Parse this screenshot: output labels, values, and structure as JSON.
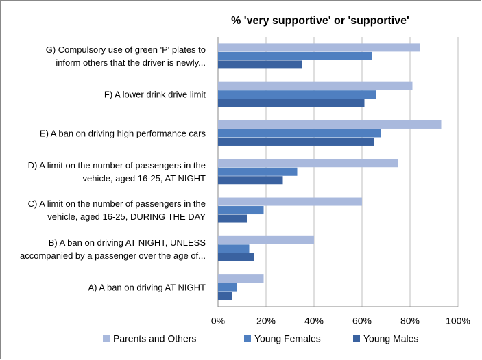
{
  "chart_data": {
    "type": "hbar",
    "title": "% 'very supportive' or 'supportive'",
    "categories": [
      "G) Compulsory use of green 'P' plates to\ninform others that the driver is newly...",
      "F) A lower drink drive limit",
      "E) A ban on driving high performance cars",
      "D) A limit on the number of passengers in the\nvehicle, aged 16-25, AT NIGHT",
      "C) A limit on the number of passengers in the\nvehicle, aged 16-25, DURING THE DAY",
      "B) A ban on driving AT NIGHT, UNLESS\naccompanied by a passenger over the age of...",
      "A) A ban on driving AT NIGHT"
    ],
    "series": [
      {
        "name": "Parents and Others",
        "color": "#a9b9dd",
        "values": [
          84,
          81,
          93,
          75,
          60,
          40,
          19
        ]
      },
      {
        "name": "Young Females",
        "color": "#4f7fc0",
        "values": [
          64,
          66,
          68,
          33,
          19,
          13,
          8
        ]
      },
      {
        "name": "Young Males",
        "color": "#3a62a0",
        "values": [
          35,
          61,
          65,
          27,
          12,
          15,
          6
        ]
      }
    ],
    "xlim": [
      0,
      100
    ],
    "xticks": [
      {
        "value": 0,
        "label": "0%"
      },
      {
        "value": 20,
        "label": "20%"
      },
      {
        "value": 40,
        "label": "40%"
      },
      {
        "value": 60,
        "label": "60%"
      },
      {
        "value": 80,
        "label": "80%"
      },
      {
        "value": 100,
        "label": "100%"
      }
    ],
    "grid": true
  }
}
